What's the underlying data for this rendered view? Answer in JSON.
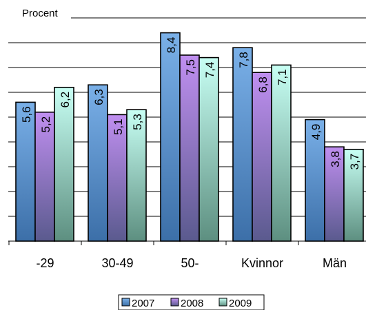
{
  "chart_data": {
    "type": "bar",
    "ylabel": "Procent",
    "ylim": [
      0,
      9
    ],
    "grid": true,
    "legend": "bottom",
    "categories": [
      "-29",
      "30-49",
      "50-",
      "Kvinnor",
      "Män"
    ],
    "series": [
      {
        "name": "2007",
        "values": [
          5.6,
          6.3,
          8.4,
          7.8,
          4.9
        ],
        "labels": [
          "5,6",
          "6,3",
          "8,4",
          "7,8",
          "4,9"
        ],
        "color": "#5f93cf"
      },
      {
        "name": "2008",
        "values": [
          5.2,
          5.1,
          7.5,
          6.8,
          3.8
        ],
        "labels": [
          "5,2",
          "5,1",
          "7,5",
          "6,8",
          "3,8"
        ],
        "color": "#a173d1"
      },
      {
        "name": "2009",
        "values": [
          6.2,
          5.3,
          7.4,
          7.1,
          3.7
        ],
        "labels": [
          "6,2",
          "5,3",
          "7,4",
          "7,1",
          "3,7"
        ],
        "color": "#9fe0d5"
      }
    ]
  }
}
